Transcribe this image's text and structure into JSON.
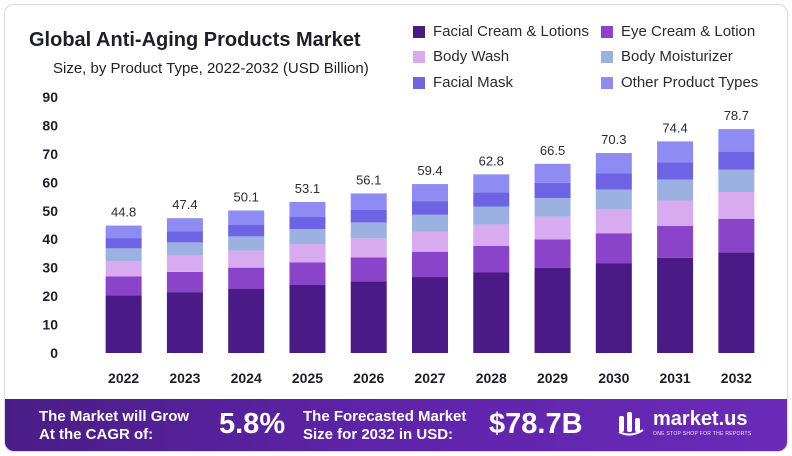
{
  "header": {
    "title": "Global Anti-Aging Products Market",
    "subtitle": "Size, by Product Type, 2022-2032 (USD Billion)"
  },
  "legend": [
    {
      "label": "Facial Cream & Lotions",
      "color": "#4a1a86"
    },
    {
      "label": "Eye Cream & Lotion",
      "color": "#8b44c9"
    },
    {
      "label": "Body Wash",
      "color": "#d8aaef"
    },
    {
      "label": "Body Moisturizer",
      "color": "#9bb1e1"
    },
    {
      "label": "Facial Mask",
      "color": "#6d63e4"
    },
    {
      "label": "Other Product Types",
      "color": "#8e8cf3"
    }
  ],
  "chart_data": {
    "type": "bar",
    "stacked": true,
    "title": "Global Anti-Aging Products Market",
    "subtitle": "Size, by Product Type, 2022-2032 (USD Billion)",
    "xlabel": "",
    "ylabel": "",
    "ylim": [
      0,
      90
    ],
    "yticks": [
      0,
      10,
      20,
      30,
      40,
      50,
      60,
      70,
      80,
      90
    ],
    "categories": [
      "2022",
      "2023",
      "2024",
      "2025",
      "2026",
      "2027",
      "2028",
      "2029",
      "2030",
      "2031",
      "2032"
    ],
    "totals": [
      44.8,
      47.4,
      50.1,
      53.1,
      56.1,
      59.4,
      62.8,
      66.5,
      70.3,
      74.4,
      78.7
    ],
    "total_labels": [
      "44.8",
      "47.4",
      "50.1",
      "53.1",
      "56.1",
      "59.4",
      "62.8",
      "66.5",
      "70.3",
      "74.4",
      "78.7"
    ],
    "series": [
      {
        "name": "Facial Cream & Lotions",
        "values": [
          20.2,
          21.4,
          22.5,
          23.9,
          25.2,
          26.7,
          28.3,
          29.9,
          31.6,
          33.5,
          35.4
        ]
      },
      {
        "name": "Eye Cream & Lotion",
        "values": [
          6.7,
          7.1,
          7.5,
          8.0,
          8.4,
          8.9,
          9.4,
          10.0,
          10.5,
          11.2,
          11.8
        ]
      },
      {
        "name": "Body Wash",
        "values": [
          5.4,
          5.7,
          6.0,
          6.4,
          6.7,
          7.1,
          7.5,
          8.0,
          8.4,
          8.9,
          9.4
        ]
      },
      {
        "name": "Body Moisturizer",
        "values": [
          4.5,
          4.7,
          5.0,
          5.3,
          5.6,
          5.9,
          6.3,
          6.6,
          7.0,
          7.4,
          7.9
        ]
      },
      {
        "name": "Facial Mask",
        "values": [
          3.6,
          3.8,
          4.0,
          4.2,
          4.5,
          4.8,
          5.0,
          5.3,
          5.6,
          6.0,
          6.3
        ]
      },
      {
        "name": "Other Product Types",
        "values": [
          4.4,
          4.7,
          5.1,
          5.3,
          5.7,
          6.0,
          6.3,
          6.7,
          7.2,
          7.4,
          7.9
        ]
      }
    ]
  },
  "footer": {
    "cagr_label_line1": "The Market will Grow",
    "cagr_label_line2": "At the CAGR of:",
    "cagr_value": "5.8%",
    "forecast_label_line1": "The Forecasted Market",
    "forecast_label_line2": "Size for 2032 in USD:",
    "forecast_value": "$78.7B",
    "brand_name": "market.us",
    "brand_tagline": "ONE STOP SHOP FOR THE REPORTS"
  }
}
